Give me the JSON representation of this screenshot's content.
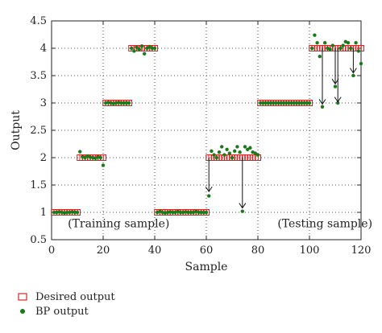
{
  "chart_data": {
    "type": "scatter",
    "title": "",
    "xlabel": "Sample",
    "ylabel": "Output",
    "xlim": [
      0,
      120
    ],
    "ylim": [
      0.5,
      4.5
    ],
    "xticks": [
      0,
      20,
      40,
      60,
      80,
      100,
      120
    ],
    "yticks": [
      0.5,
      1,
      1.5,
      2,
      2.5,
      3,
      3.5,
      4,
      4.5
    ],
    "ytick_labels": [
      "0.5",
      "1",
      "1.5",
      "2",
      "2.5",
      "3",
      "3.5",
      "4",
      "4.5"
    ],
    "grid": true,
    "legend_position": "below-left",
    "series": [
      {
        "name": "Desired output",
        "marker": "open-square",
        "color": "#d62728",
        "x": [
          1,
          2,
          3,
          4,
          5,
          6,
          7,
          8,
          9,
          10,
          11,
          12,
          13,
          14,
          15,
          16,
          17,
          18,
          19,
          20,
          21,
          22,
          23,
          24,
          25,
          26,
          27,
          28,
          29,
          30,
          31,
          32,
          33,
          34,
          35,
          36,
          37,
          38,
          39,
          40,
          41,
          42,
          43,
          44,
          45,
          46,
          47,
          48,
          49,
          50,
          51,
          52,
          53,
          54,
          55,
          56,
          57,
          58,
          59,
          60,
          61,
          62,
          63,
          64,
          65,
          66,
          67,
          68,
          69,
          70,
          71,
          72,
          73,
          74,
          75,
          76,
          77,
          78,
          79,
          80,
          81,
          82,
          83,
          84,
          85,
          86,
          87,
          88,
          89,
          90,
          91,
          92,
          93,
          94,
          95,
          96,
          97,
          98,
          99,
          100,
          101,
          102,
          103,
          104,
          105,
          106,
          107,
          108,
          109,
          110,
          111,
          112,
          113,
          114,
          115,
          116,
          117,
          118,
          119,
          120
        ],
        "y": [
          1,
          1,
          1,
          1,
          1,
          1,
          1,
          1,
          1,
          1,
          2,
          2,
          2,
          2,
          2,
          2,
          2,
          2,
          2,
          2,
          3,
          3,
          3,
          3,
          3,
          3,
          3,
          3,
          3,
          3,
          4,
          4,
          4,
          4,
          4,
          4,
          4,
          4,
          4,
          4,
          1,
          1,
          1,
          1,
          1,
          1,
          1,
          1,
          1,
          1,
          1,
          1,
          1,
          1,
          1,
          1,
          1,
          1,
          1,
          1,
          2,
          2,
          2,
          2,
          2,
          2,
          2,
          2,
          2,
          2,
          2,
          2,
          2,
          2,
          2,
          2,
          2,
          2,
          2,
          2,
          3,
          3,
          3,
          3,
          3,
          3,
          3,
          3,
          3,
          3,
          3,
          3,
          3,
          3,
          3,
          3,
          3,
          3,
          3,
          3,
          4,
          4,
          4,
          4,
          4,
          4,
          4,
          4,
          4,
          4,
          4,
          4,
          4,
          4,
          4,
          4,
          4,
          4,
          4,
          4
        ]
      },
      {
        "name": "BP output",
        "marker": "filled-circle",
        "color": "#1a7a1a",
        "x": [
          1,
          2,
          3,
          4,
          5,
          6,
          7,
          8,
          9,
          10,
          11,
          12,
          13,
          14,
          15,
          16,
          17,
          18,
          19,
          20,
          21,
          22,
          23,
          24,
          25,
          26,
          27,
          28,
          29,
          30,
          31,
          32,
          33,
          34,
          35,
          36,
          37,
          38,
          39,
          40,
          41,
          42,
          43,
          44,
          45,
          46,
          47,
          48,
          49,
          50,
          51,
          52,
          53,
          54,
          55,
          56,
          57,
          58,
          59,
          60,
          61,
          62,
          63,
          64,
          65,
          66,
          67,
          68,
          69,
          70,
          71,
          72,
          73,
          74,
          75,
          76,
          77,
          78,
          79,
          80,
          81,
          82,
          83,
          84,
          85,
          86,
          87,
          88,
          89,
          90,
          91,
          92,
          93,
          94,
          95,
          96,
          97,
          98,
          99,
          100,
          101,
          102,
          103,
          104,
          105,
          106,
          107,
          108,
          109,
          110,
          111,
          112,
          113,
          114,
          115,
          116,
          117,
          118,
          119,
          120
        ],
        "y": [
          1.0,
          1.0,
          1.01,
          1.0,
          0.99,
          1.0,
          1.0,
          1.01,
          1.0,
          1.0,
          2.11,
          2.02,
          2.0,
          2.03,
          2.01,
          2.0,
          1.99,
          2.02,
          2.0,
          1.86,
          3.0,
          3.01,
          3.0,
          2.99,
          3.0,
          3.01,
          3.0,
          3.0,
          3.0,
          3.0,
          4.0,
          3.95,
          4.02,
          3.98,
          4.04,
          3.9,
          4.0,
          4.03,
          4.0,
          4.0,
          1.0,
          1.02,
          1.0,
          0.99,
          1.0,
          1.01,
          1.0,
          1.0,
          1.02,
          1.0,
          1.0,
          1.01,
          1.0,
          1.0,
          1.0,
          1.02,
          1.0,
          1.0,
          1.0,
          1.0,
          1.3,
          2.12,
          2.05,
          2.0,
          2.1,
          2.2,
          2.05,
          2.15,
          2.08,
          2.0,
          2.12,
          2.2,
          2.1,
          1.02,
          2.2,
          2.15,
          2.18,
          2.1,
          2.08,
          2.05,
          3.0,
          3.0,
          3.0,
          3.0,
          3.0,
          3.0,
          3.0,
          3.0,
          3.0,
          3.0,
          3.0,
          3.0,
          3.0,
          3.0,
          3.0,
          3.0,
          3.0,
          3.0,
          3.0,
          3.0,
          4.0,
          4.24,
          4.1,
          3.85,
          2.93,
          4.1,
          4.0,
          3.98,
          4.05,
          3.3,
          3.0,
          4.0,
          4.05,
          4.12,
          4.1,
          4.0,
          3.5,
          4.1,
          3.95,
          3.72
        ]
      }
    ],
    "annotations": [
      {
        "text": "(Training sample)",
        "x": 26,
        "y": 0.73
      },
      {
        "text": "(Testing sample)",
        "x": 106,
        "y": 0.73
      }
    ],
    "arrows": [
      {
        "x": 61,
        "y_from": 2.0,
        "y_to": 1.38
      },
      {
        "x": 74,
        "y_from": 2.0,
        "y_to": 1.08
      },
      {
        "x": 105,
        "y_from": 4.0,
        "y_to": 2.98
      },
      {
        "x": 110,
        "y_from": 4.0,
        "y_to": 3.35
      },
      {
        "x": 111,
        "y_from": 4.0,
        "y_to": 3.02
      },
      {
        "x": 117,
        "y_from": 4.0,
        "y_to": 3.55
      }
    ]
  },
  "legend": {
    "items": [
      {
        "label": "Desired output",
        "marker": "open-square",
        "color": "#d62728"
      },
      {
        "label": "BP output",
        "marker": "filled-circle",
        "color": "#1a7a1a"
      }
    ]
  }
}
